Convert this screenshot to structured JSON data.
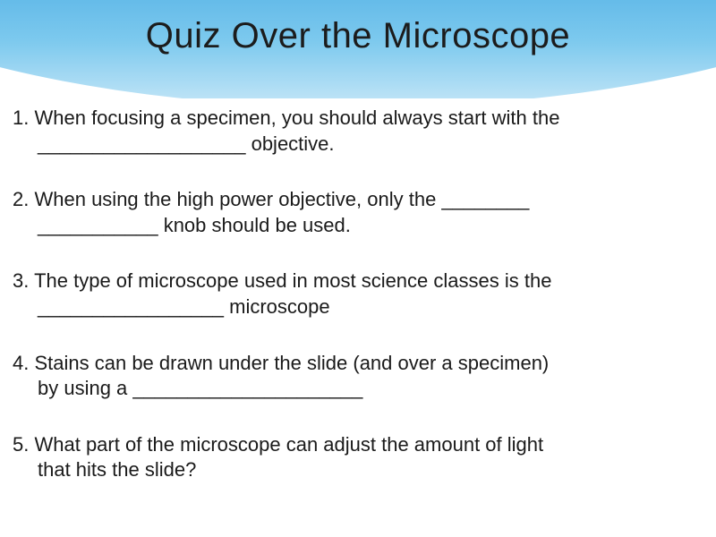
{
  "slide": {
    "title": "Quiz Over the Microscope",
    "title_fontsize": 40,
    "title_color": "#1c1c1c",
    "header_gradient": [
      "#0a5aa8",
      "#1976c4",
      "#3ca3e0",
      "#7cc9ee",
      "#c5e6f7"
    ],
    "background_color": "#ffffff",
    "body_fontsize": 22,
    "body_color": "#1a1a1a",
    "questions": [
      {
        "num": "1.",
        "line1": "When focusing a specimen, you should always start with the",
        "line2": "___________________ objective."
      },
      {
        "num": "2.",
        "line1": "When using the high power objective, only the ________",
        "line2": "___________ knob should be used."
      },
      {
        "num": "3.",
        "line1": "The type of microscope used in most science classes is the",
        "line2": "_________________ microscope"
      },
      {
        "num": "4.",
        "line1": "Stains can be drawn under the slide (and over a specimen)",
        "line2": "by using a _____________________"
      },
      {
        "num": "5.",
        "line1": "What part of the microscope can adjust the amount of light",
        "line2": "that hits the slide?"
      }
    ]
  }
}
